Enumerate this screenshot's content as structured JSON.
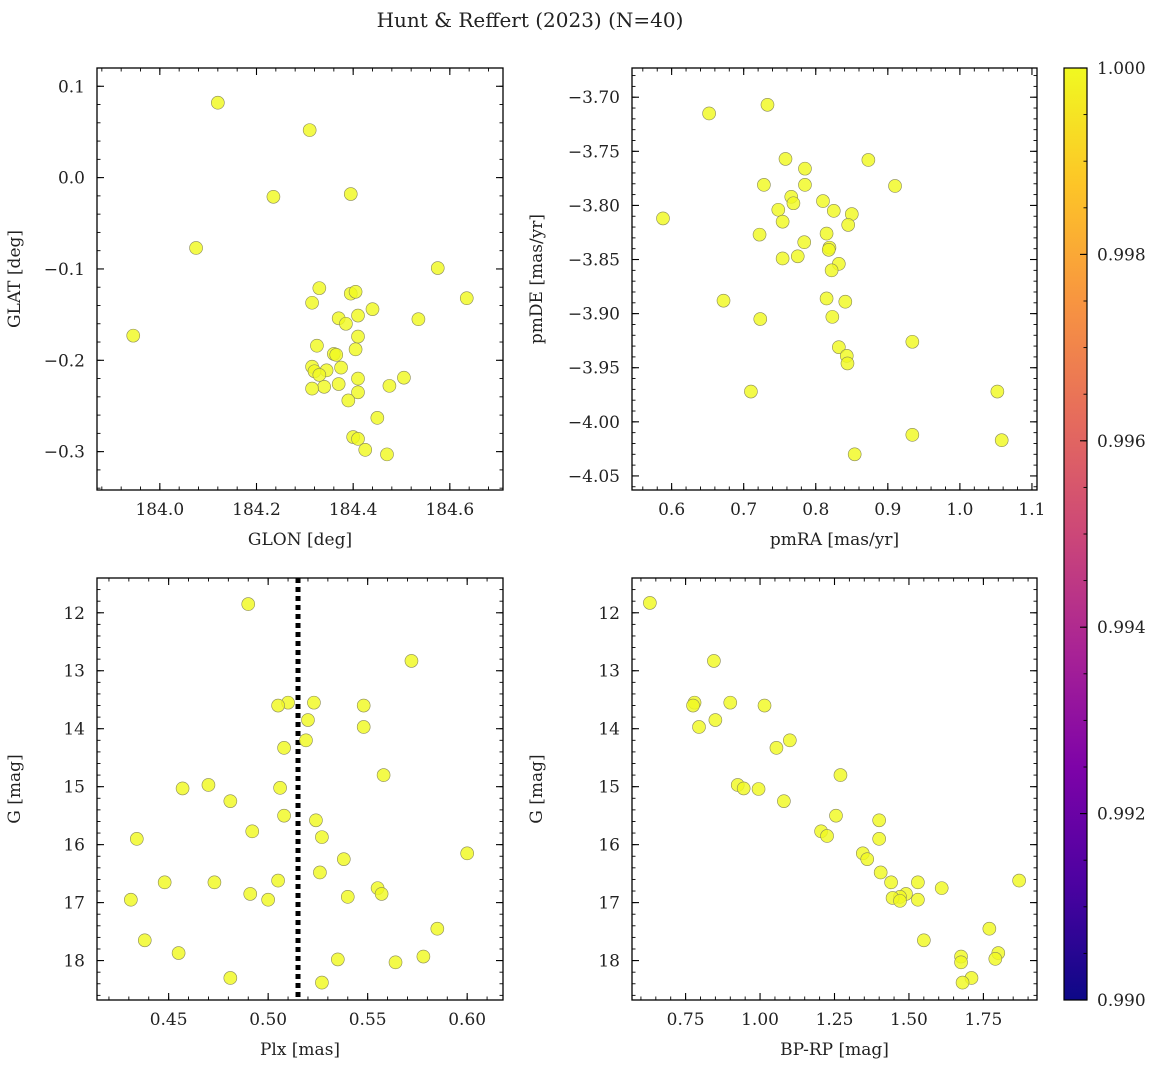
{
  "figure": {
    "title": "Hunt & Reffert (2023) (N=40)"
  },
  "colorbar": {
    "colormap": "plasma",
    "range": [
      0.99,
      1.0
    ],
    "tick_labels": [
      "0.990",
      "0.992",
      "0.994",
      "0.996",
      "0.998",
      "1.000"
    ],
    "tick_values": [
      0.99,
      0.992,
      0.994,
      0.996,
      0.998,
      1.0
    ]
  },
  "chart_data": [
    {
      "type": "scatter",
      "xlabel": "GLON [deg]",
      "ylabel": "GLAT [deg]",
      "xlim": [
        183.87,
        184.71
      ],
      "ylim": [
        -0.342,
        0.12
      ],
      "xticks": [
        184.0,
        184.2,
        184.4,
        184.6
      ],
      "xtick_labels": [
        "184.0",
        "184.2",
        "184.4",
        "184.6"
      ],
      "yticks": [
        -0.3,
        -0.2,
        -0.1,
        0.0,
        0.1
      ],
      "ytick_labels": [
        "−0.3",
        "−0.2",
        "−0.1",
        "0.0",
        "0.1"
      ],
      "marker_color": "#f0f921",
      "points": [
        [
          184.12,
          0.082
        ],
        [
          184.31,
          0.052
        ],
        [
          184.395,
          -0.018
        ],
        [
          184.235,
          -0.021
        ],
        [
          184.075,
          -0.077
        ],
        [
          184.575,
          -0.099
        ],
        [
          184.635,
          -0.132
        ],
        [
          183.945,
          -0.173
        ],
        [
          184.33,
          -0.121
        ],
        [
          184.395,
          -0.127
        ],
        [
          184.405,
          -0.125
        ],
        [
          184.315,
          -0.137
        ],
        [
          184.44,
          -0.144
        ],
        [
          184.41,
          -0.151
        ],
        [
          184.37,
          -0.154
        ],
        [
          184.535,
          -0.155
        ],
        [
          184.385,
          -0.16
        ],
        [
          184.41,
          -0.174
        ],
        [
          184.325,
          -0.184
        ],
        [
          184.405,
          -0.188
        ],
        [
          184.36,
          -0.193
        ],
        [
          184.365,
          -0.194
        ],
        [
          184.315,
          -0.207
        ],
        [
          184.375,
          -0.208
        ],
        [
          184.345,
          -0.211
        ],
        [
          184.32,
          -0.212
        ],
        [
          184.505,
          -0.219
        ],
        [
          184.41,
          -0.22
        ],
        [
          184.37,
          -0.226
        ],
        [
          184.475,
          -0.228
        ],
        [
          184.34,
          -0.229
        ],
        [
          184.315,
          -0.231
        ],
        [
          184.41,
          -0.235
        ],
        [
          184.39,
          -0.244
        ],
        [
          184.45,
          -0.263
        ],
        [
          184.4,
          -0.284
        ],
        [
          184.41,
          -0.286
        ],
        [
          184.425,
          -0.298
        ],
        [
          184.47,
          -0.303
        ],
        [
          184.33,
          -0.216
        ]
      ]
    },
    {
      "type": "scatter",
      "xlabel": "pmRA [mas/yr]",
      "ylabel": "pmDE [mas/yr]",
      "xlim": [
        0.545,
        1.107
      ],
      "ylim": [
        -4.063,
        -3.673
      ],
      "xticks": [
        0.6,
        0.7,
        0.8,
        0.9,
        1.0,
        1.1
      ],
      "xtick_labels": [
        "0.6",
        "0.7",
        "0.8",
        "0.9",
        "1.0",
        "1.1"
      ],
      "yticks": [
        -4.05,
        -4.0,
        -3.95,
        -3.9,
        -3.85,
        -3.8,
        -3.75,
        -3.7
      ],
      "ytick_labels": [
        "−4.05",
        "−4.00",
        "−3.95",
        "−3.90",
        "−3.85",
        "−3.80",
        "−3.75",
        "−3.70"
      ],
      "marker_color": "#f0f921",
      "points": [
        [
          0.733,
          -3.707
        ],
        [
          0.652,
          -3.715
        ],
        [
          0.758,
          -3.757
        ],
        [
          0.873,
          -3.758
        ],
        [
          0.785,
          -3.766
        ],
        [
          0.728,
          -3.781
        ],
        [
          0.785,
          -3.781
        ],
        [
          0.91,
          -3.782
        ],
        [
          0.766,
          -3.792
        ],
        [
          0.769,
          -3.798
        ],
        [
          0.81,
          -3.796
        ],
        [
          0.748,
          -3.804
        ],
        [
          0.825,
          -3.805
        ],
        [
          0.85,
          -3.808
        ],
        [
          0.588,
          -3.812
        ],
        [
          0.754,
          -3.815
        ],
        [
          0.845,
          -3.818
        ],
        [
          0.722,
          -3.827
        ],
        [
          0.815,
          -3.826
        ],
        [
          0.819,
          -3.839
        ],
        [
          0.818,
          -3.841
        ],
        [
          0.784,
          -3.834
        ],
        [
          0.775,
          -3.847
        ],
        [
          0.754,
          -3.849
        ],
        [
          0.832,
          -3.854
        ],
        [
          0.822,
          -3.86
        ],
        [
          0.815,
          -3.886
        ],
        [
          0.672,
          -3.888
        ],
        [
          0.841,
          -3.889
        ],
        [
          0.823,
          -3.903
        ],
        [
          0.723,
          -3.905
        ],
        [
          0.934,
          -3.926
        ],
        [
          0.832,
          -3.931
        ],
        [
          0.843,
          -3.939
        ],
        [
          0.844,
          -3.946
        ],
        [
          0.71,
          -3.972
        ],
        [
          1.052,
          -3.972
        ],
        [
          0.934,
          -4.012
        ],
        [
          1.058,
          -4.017
        ],
        [
          0.854,
          -4.03
        ]
      ]
    },
    {
      "type": "scatter",
      "xlabel": "Plx [mas]",
      "ylabel": "G [mag]",
      "xlim": [
        0.414,
        0.618
      ],
      "ylim": [
        18.68,
        11.4
      ],
      "y_inverted": true,
      "reference_line": {
        "x": 0.515,
        "style": "dotted",
        "color": "#000000"
      },
      "xticks": [
        0.45,
        0.5,
        0.55,
        0.6
      ],
      "xtick_labels": [
        "0.45",
        "0.50",
        "0.55",
        "0.60"
      ],
      "yticks": [
        12,
        13,
        14,
        15,
        16,
        17,
        18
      ],
      "ytick_labels": [
        "12",
        "13",
        "14",
        "15",
        "16",
        "17",
        "18"
      ],
      "marker_color": "#f0f921",
      "points": [
        [
          0.49,
          11.85
        ],
        [
          0.572,
          12.83
        ],
        [
          0.51,
          13.55
        ],
        [
          0.523,
          13.55
        ],
        [
          0.505,
          13.6
        ],
        [
          0.548,
          13.6
        ],
        [
          0.52,
          13.85
        ],
        [
          0.548,
          13.97
        ],
        [
          0.519,
          14.2
        ],
        [
          0.508,
          14.33
        ],
        [
          0.558,
          14.8
        ],
        [
          0.47,
          14.97
        ],
        [
          0.457,
          15.03
        ],
        [
          0.506,
          15.02
        ],
        [
          0.481,
          15.25
        ],
        [
          0.508,
          15.5
        ],
        [
          0.524,
          15.58
        ],
        [
          0.492,
          15.77
        ],
        [
          0.527,
          15.87
        ],
        [
          0.434,
          15.9
        ],
        [
          0.6,
          16.15
        ],
        [
          0.538,
          16.25
        ],
        [
          0.526,
          16.48
        ],
        [
          0.448,
          16.65
        ],
        [
          0.473,
          16.65
        ],
        [
          0.505,
          16.62
        ],
        [
          0.54,
          16.9
        ],
        [
          0.555,
          16.75
        ],
        [
          0.557,
          16.85
        ],
        [
          0.491,
          16.85
        ],
        [
          0.5,
          16.95
        ],
        [
          0.431,
          16.95
        ],
        [
          0.585,
          17.45
        ],
        [
          0.438,
          17.65
        ],
        [
          0.455,
          17.87
        ],
        [
          0.578,
          17.93
        ],
        [
          0.535,
          17.98
        ],
        [
          0.564,
          18.03
        ],
        [
          0.481,
          18.3
        ],
        [
          0.527,
          18.38
        ]
      ]
    },
    {
      "type": "scatter",
      "xlabel": "BP-RP [mag]",
      "ylabel": "G [mag]",
      "xlim": [
        0.57,
        1.93
      ],
      "ylim": [
        18.68,
        11.4
      ],
      "y_inverted": true,
      "xticks": [
        0.75,
        1.0,
        1.25,
        1.5,
        1.75
      ],
      "xtick_labels": [
        "0.75",
        "1.00",
        "1.25",
        "1.50",
        "1.75"
      ],
      "yticks": [
        12,
        13,
        14,
        15,
        16,
        17,
        18
      ],
      "ytick_labels": [
        "12",
        "13",
        "14",
        "15",
        "16",
        "17",
        "18"
      ],
      "marker_color": "#f0f921",
      "points": [
        [
          0.63,
          11.83
        ],
        [
          0.845,
          12.83
        ],
        [
          0.78,
          13.55
        ],
        [
          0.9,
          13.55
        ],
        [
          0.775,
          13.6
        ],
        [
          1.015,
          13.6
        ],
        [
          0.85,
          13.85
        ],
        [
          0.795,
          13.97
        ],
        [
          1.1,
          14.2
        ],
        [
          1.055,
          14.33
        ],
        [
          1.27,
          14.8
        ],
        [
          0.925,
          14.97
        ],
        [
          0.945,
          15.03
        ],
        [
          0.995,
          15.04
        ],
        [
          1.08,
          15.25
        ],
        [
          1.255,
          15.5
        ],
        [
          1.4,
          15.58
        ],
        [
          1.205,
          15.77
        ],
        [
          1.225,
          15.85
        ],
        [
          1.4,
          15.9
        ],
        [
          1.345,
          16.15
        ],
        [
          1.36,
          16.25
        ],
        [
          1.405,
          16.48
        ],
        [
          1.44,
          16.65
        ],
        [
          1.53,
          16.65
        ],
        [
          1.61,
          16.75
        ],
        [
          1.49,
          16.85
        ],
        [
          1.47,
          16.9
        ],
        [
          1.445,
          16.92
        ],
        [
          1.53,
          16.95
        ],
        [
          1.87,
          16.62
        ],
        [
          1.55,
          17.65
        ],
        [
          1.77,
          17.45
        ],
        [
          1.675,
          17.93
        ],
        [
          1.8,
          17.87
        ],
        [
          1.79,
          17.97
        ],
        [
          1.675,
          18.03
        ],
        [
          1.71,
          18.3
        ],
        [
          1.68,
          18.38
        ],
        [
          1.47,
          16.97
        ]
      ]
    }
  ]
}
